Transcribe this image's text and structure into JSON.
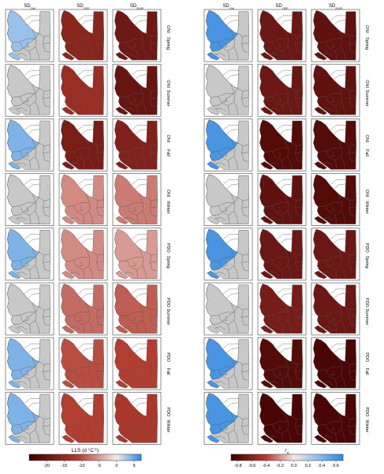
{
  "left_panel": {
    "columns": [
      {
        "main": "SD",
        "sub": "ON"
      },
      {
        "main": "SD",
        "sub": "OFF"
      },
      {
        "main": "SD",
        "sub": "DUR"
      }
    ],
    "rows": [
      {
        "index": "ONI",
        "season": "Spring",
        "values": [
          3,
          -16,
          -19
        ]
      },
      {
        "index": "ONI",
        "season": "Summer",
        "values": [
          null,
          -14,
          -20
        ]
      },
      {
        "index": "ONI",
        "season": "Fall",
        "values": [
          4,
          -18,
          -17
        ]
      },
      {
        "index": "ONI",
        "season": "Winter",
        "values": [
          null,
          -6,
          -7
        ]
      },
      {
        "index": "PDO",
        "season": "Spring",
        "values": [
          4,
          -6,
          -5
        ]
      },
      {
        "index": "PDO",
        "season": "Summer",
        "values": [
          null,
          -8,
          -9
        ]
      },
      {
        "index": "PDO",
        "season": "Fall",
        "values": [
          4,
          -10,
          -11
        ]
      },
      {
        "index": "PDO",
        "season": "Winter",
        "values": [
          4,
          -11,
          -12
        ]
      }
    ],
    "colorbar": {
      "title": "LLS (d °C",
      "title_sup": "-1",
      "title_end": ")",
      "min": -25,
      "max": 7,
      "ticks": [
        "-20",
        "-15",
        "-10",
        "-5",
        "0",
        "5"
      ],
      "tick_values": [
        -20,
        -15,
        -10,
        -5,
        0,
        5
      ]
    }
  },
  "right_panel": {
    "columns": [
      {
        "main": "SD",
        "sub": "ON"
      },
      {
        "main": "SD",
        "sub": "OFF"
      },
      {
        "main": "SD",
        "sub": "DUR"
      }
    ],
    "rows": [
      {
        "index": "ONI",
        "season": "Spring",
        "values": [
          0.6,
          -0.7,
          -0.75
        ]
      },
      {
        "index": "ONI",
        "season": "Summer",
        "values": [
          null,
          -0.7,
          -0.75
        ]
      },
      {
        "index": "ONI",
        "season": "Fall",
        "values": [
          0.6,
          -0.8,
          -0.8
        ]
      },
      {
        "index": "ONI",
        "season": "Winter",
        "values": [
          null,
          -0.75,
          -0.8
        ]
      },
      {
        "index": "PDO",
        "season": "Spring",
        "values": [
          0.6,
          -0.7,
          -0.7
        ]
      },
      {
        "index": "PDO",
        "season": "Summer",
        "values": [
          null,
          -0.65,
          -0.7
        ]
      },
      {
        "index": "PDO",
        "season": "Fall",
        "values": [
          0.6,
          -0.8,
          -0.85
        ]
      },
      {
        "index": "PDO",
        "season": "Winter",
        "values": [
          0.6,
          -0.85,
          -0.85
        ]
      }
    ],
    "colorbar": {
      "title": "r",
      "title_sub": "S",
      "min": -0.9,
      "max": 0.7,
      "ticks": [
        "-0.8",
        "-0.6",
        "-0.4",
        "-0.2",
        "0.0",
        "0.2",
        "0.4",
        "0.6"
      ],
      "tick_values": [
        -0.8,
        -0.6,
        -0.4,
        -0.2,
        0.0,
        0.2,
        0.4,
        0.6
      ]
    }
  },
  "colors": {
    "no_data": "#c8c8c8",
    "dark_red": "#3d0000",
    "red": "#b03a2e",
    "light": "#f6e8e4",
    "blue": "#2e86de",
    "border": "#555555"
  }
}
